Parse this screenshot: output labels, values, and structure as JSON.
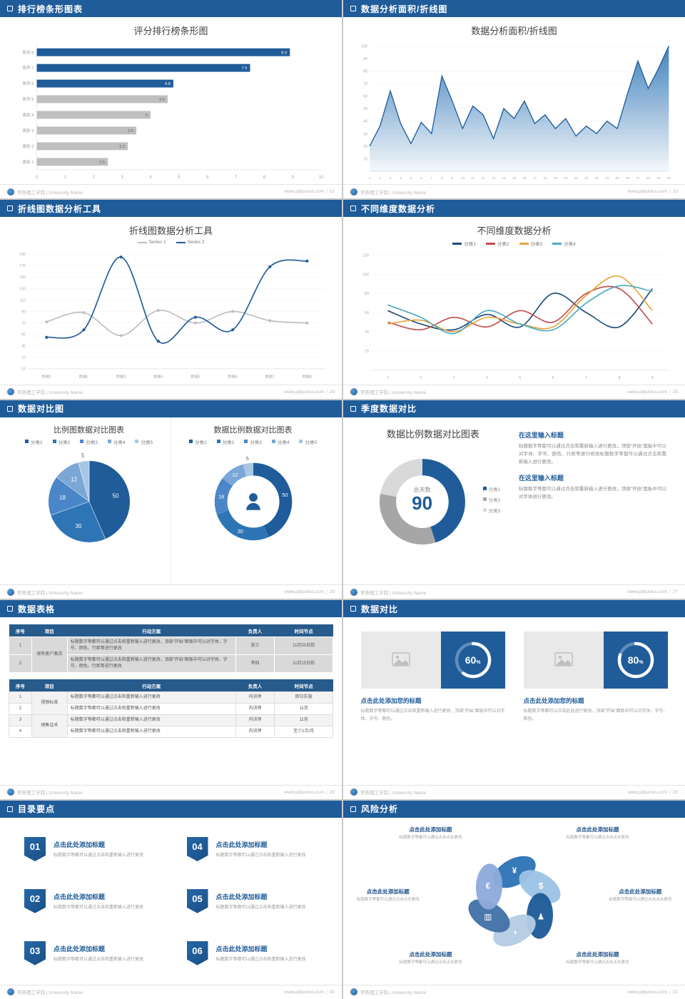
{
  "footer": {
    "school": "常熟理工学院 | University Name",
    "site": "www.pptjunius.com",
    "sep": "|"
  },
  "colors": {
    "primary": "#1F5C99",
    "gray_bar": "#BFBFBF"
  },
  "slides": [
    {
      "header": "排行榜条形图表",
      "page": "22",
      "chart_data": {
        "type": "bar",
        "title": "评分排行榜条形图",
        "orientation": "horizontal",
        "categories": [
          "系列 8",
          "系列 7",
          "系列 6",
          "系列 5",
          "类别 4",
          "类别 3",
          "类别 2",
          "类别 1"
        ],
        "values": [
          8.9,
          7.5,
          4.8,
          4.6,
          4,
          3.5,
          3.2,
          2.5
        ],
        "bar_colors": [
          "#1F5C99",
          "#1F5C99",
          "#1F5C99",
          "#BFBFBF",
          "#BFBFBF",
          "#BFBFBF",
          "#BFBFBF",
          "#BFBFBF"
        ],
        "xlim": [
          0,
          10
        ],
        "xticks": [
          0,
          1,
          2,
          3,
          4,
          5,
          6,
          7,
          8,
          9,
          10
        ]
      }
    },
    {
      "header": "数据分析面积/折线图",
      "page": "23",
      "chart_data": {
        "type": "area",
        "title": "数据分析面积/折线图",
        "x": [
          1,
          2,
          3,
          4,
          5,
          6,
          7,
          8,
          9,
          10,
          11,
          12,
          13,
          14,
          15,
          16,
          17,
          18,
          19,
          20,
          21,
          22,
          23,
          24,
          25,
          26,
          27,
          28,
          29,
          30
        ],
        "values": [
          20,
          36,
          64,
          38,
          22,
          39,
          30,
          76,
          56,
          34,
          52,
          45,
          26,
          50,
          42,
          56,
          38,
          45,
          34,
          42,
          28,
          36,
          30,
          40,
          34,
          62,
          88,
          66,
          82,
          100
        ],
        "ylim": [
          0,
          100
        ],
        "yticks": [
          10,
          20,
          30,
          40,
          50,
          60,
          70,
          80,
          90,
          100
        ],
        "line_color": "#1F5C99",
        "fill_color": "#2E75B6"
      }
    },
    {
      "header": "折线图数据分析工具",
      "page": "24",
      "chart_data": {
        "type": "line",
        "title": "折线图数据分析工具",
        "markers": true,
        "xlabels": [
          "数据1",
          "数据2",
          "数据3",
          "数据4",
          "数据5",
          "数据6",
          "数据7",
          "数据8"
        ],
        "ylim": [
          -10,
          190
        ],
        "yticks": [
          -10,
          10,
          30,
          50,
          70,
          90,
          110,
          130,
          150,
          170,
          190
        ],
        "series": [
          {
            "name": "Series 1",
            "color": "#BFBFBF",
            "values": [
              72,
              88,
              48,
              92,
              70,
              90,
              74,
              70
            ]
          },
          {
            "name": "Series 2",
            "color": "#1F5C99",
            "values": [
              45,
              58,
              185,
              38,
              80,
              58,
              168,
              178
            ]
          }
        ]
      }
    },
    {
      "header": "不同维度数据分析",
      "page": "25",
      "chart_data": {
        "type": "line",
        "title": "不同维度数据分析",
        "markers": false,
        "xlabels": [
          "1",
          "2",
          "3",
          "4",
          "5",
          "6",
          "7",
          "8",
          "9"
        ],
        "ylim": [
          0,
          120
        ],
        "yticks": [
          20,
          40,
          60,
          80,
          100,
          120
        ],
        "series": [
          {
            "name": "分类1",
            "color": "#1F4E79",
            "values": [
              62,
              48,
              42,
              58,
              45,
              80,
              60,
              45,
              85
            ]
          },
          {
            "name": "分类2",
            "color": "#C0504D",
            "values": [
              50,
              42,
              55,
              45,
              62,
              50,
              80,
              85,
              48
            ]
          },
          {
            "name": "分类3",
            "color": "#E8A33D",
            "values": [
              48,
              52,
              40,
              55,
              48,
              45,
              78,
              98,
              62
            ]
          },
          {
            "name": "分类4",
            "color": "#4BACC6",
            "values": [
              68,
              55,
              38,
              62,
              48,
              42,
              70,
              88,
              82
            ]
          }
        ]
      }
    },
    {
      "header": "数据对比图",
      "page": "26",
      "chart_data": [
        {
          "type": "pie",
          "title": "比例图数据对比图表",
          "legend": [
            "分类1",
            "分类2",
            "分类3",
            "分类4",
            "分类5"
          ],
          "values": [
            50,
            30,
            18,
            12,
            5
          ],
          "colors": [
            "#1F5C99",
            "#2E75B6",
            "#4A86C8",
            "#7BA7D7",
            "#A8C6E5"
          ]
        },
        {
          "type": "donut",
          "title": "数据比例数据对比图表",
          "legend": [
            "分类1",
            "分类2",
            "分类3",
            "分类4",
            "分类5"
          ],
          "values": [
            50,
            30,
            18,
            12,
            5
          ],
          "colors": [
            "#1F5C99",
            "#2E75B6",
            "#4A86C8",
            "#7BA7D7",
            "#A8C6E5"
          ],
          "show_labels": true,
          "center_icon": "person"
        }
      ]
    },
    {
      "header": "季度数据对比",
      "page": "27",
      "center_label": "总天数",
      "center_value": "90",
      "chart_data": {
        "type": "donut",
        "title": "数据比例数据对比图表",
        "legend": [
          "分类1",
          "分类2",
          "分类3"
        ],
        "values": [
          45,
          33,
          22
        ],
        "colors": [
          "#1F5C99",
          "#A6A6A6",
          "#D9D9D9"
        ],
        "show_labels": false
      },
      "blocks": [
        {
          "heading": "在这里输入标题",
          "body": "标题数字等都可以通过点击和重新输入进行更改，顶部“开始”面板中可以对字体、字号、颜色、行距等进行修改标题数字等都可以通过点击和重新输入进行更改。"
        },
        {
          "heading": "在这里输入标题",
          "body": "标题数字等都可以通过点击和重新输入进行更改，顶部“开始”面板中可以对字体进行更改。"
        }
      ]
    },
    {
      "header": "数据表格",
      "page": "28",
      "table1": {
        "headers": [
          "序号",
          "项目",
          "行动方案",
          "负责人",
          "时间节点"
        ],
        "rows": [
          [
            "1",
            "保有客户激活",
            "标题数字等都可以通过点击和重新输入进行更改，顶部“开始”面板中可以对字体、字号、颜色、行距等进行更改",
            "张三",
            "11月30日前"
          ],
          [
            "2",
            "",
            "标题数字等都可以通过点击和重新输入进行更改，顶部“开始”面板中可以对字体、字号、颜色、行距等进行更改",
            "李四",
            "11月15日前"
          ]
        ]
      },
      "table2": {
        "headers": [
          "序号",
          "项目",
          "行动方案",
          "负责人",
          "时间节点"
        ],
        "rows": [
          [
            "1",
            "视频标准",
            "标题数字等都可以通过点击和重新输入进行更改",
            "内训师",
            "即日实施"
          ],
          [
            "2",
            "",
            "标题数字等都可以通过点击和重新输入进行更改",
            "内训师",
            "11月"
          ],
          [
            "3",
            "销售话术",
            "标题数字等都可以通过点击和重新输入进行更改",
            "内训师",
            "11月"
          ],
          [
            "4",
            "",
            "标题数字等都可以通过点击和重新输入进行更改",
            "内训师",
            "至少1次/月"
          ]
        ]
      }
    },
    {
      "header": "数据对比",
      "page": "29",
      "cards": [
        {
          "title": "点击此处添加您的标题",
          "body": "标题数字等都可以通过点击和重新输入进行更改，顶部“开始”面板中可以对字体、字号、颜色。",
          "unit": "%",
          "chart_data": {
            "type": "progress",
            "value": 60,
            "max": 100,
            "ring_color": "#FFFFFF",
            "track_color": "rgba(255,255,255,0.3)"
          }
        },
        {
          "title": "点击此处添加您的标题",
          "body": "标题数字等都可以点击此处进行更改，顶部“开始”面板中可以对字体、字号、颜色。",
          "unit": "%",
          "chart_data": {
            "type": "progress",
            "value": 80,
            "max": 100,
            "ring_color": "#FFFFFF",
            "track_color": "rgba(255,255,255,0.3)"
          }
        }
      ]
    },
    {
      "header": "目录要点",
      "page": "30",
      "items": [
        {
          "num": "01",
          "title": "点击此处添加标题",
          "caption": "标题数字等都可以通过点击和重新输入进行更改"
        },
        {
          "num": "02",
          "title": "点击此处添加标题",
          "caption": "标题数字等都可以通过点击和重新输入进行更改"
        },
        {
          "num": "03",
          "title": "点击此处添加标题",
          "caption": "标题数字等都可以通过点击和重新输入进行更改"
        },
        {
          "num": "04",
          "title": "点击此处添加标题",
          "caption": "标题数字等都可以通过点击和重新输入进行更改"
        },
        {
          "num": "05",
          "title": "点击此处添加标题",
          "caption": "标题数字等都可以通过点击和重新输入进行更改"
        },
        {
          "num": "06",
          "title": "点击此处添加标题",
          "caption": "标题数字等都可以通过点击和重新输入进行更改"
        }
      ]
    },
    {
      "header": "风险分析",
      "page": "31",
      "chart_data": {
        "type": "pinwheel",
        "petals": [
          {
            "icon": "¥",
            "name": "money-bag-icon",
            "color": "#2E75B6"
          },
          {
            "icon": "$",
            "name": "coins-icon",
            "color": "#9DC3E6"
          },
          {
            "icon": "♟",
            "name": "people-icon",
            "color": "#1F5C99"
          },
          {
            "icon": "◑",
            "name": "pie-chart-icon",
            "color": "#B4CCE4"
          },
          {
            "icon": "▥",
            "name": "bar-chart-icon",
            "color": "#4472A8"
          },
          {
            "icon": "€",
            "name": "bank-icon",
            "color": "#8FAADC"
          }
        ]
      },
      "labels": [
        {
          "title": "点击此处添加标题",
          "caption": "标题数字等都可以通过点击点击更改"
        },
        {
          "title": "点击此处添加标题",
          "caption": "标题数字等都可以通过点击点击更改"
        },
        {
          "title": "点击此处添加标题",
          "caption": "标题数字等都可以通过点击点击更改"
        },
        {
          "title": "点击此处添加标题",
          "caption": "标题数字等都可以通过点击点击更改"
        },
        {
          "title": "点击此处添加标题",
          "caption": "标题数字等都可以通过点击点击更改"
        },
        {
          "title": "点击此处添加标题",
          "caption": "标题数字等都可以通过点击点击更改"
        }
      ]
    }
  ]
}
